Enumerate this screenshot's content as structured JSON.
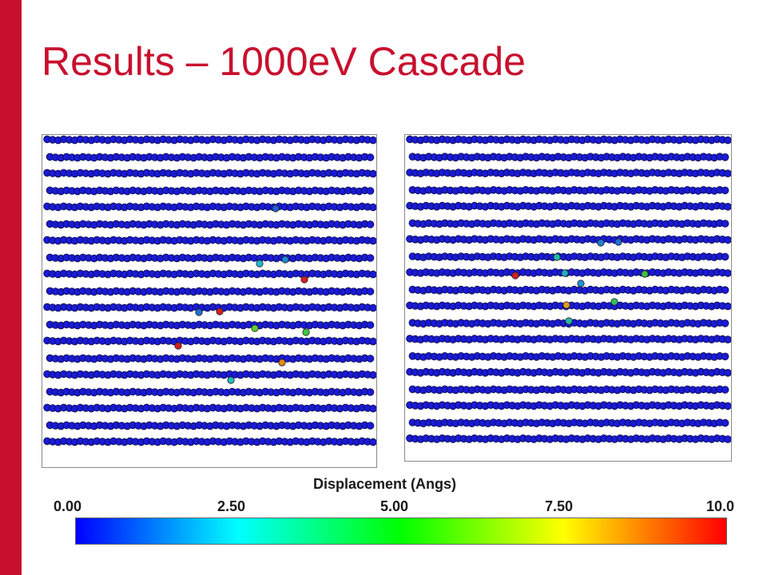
{
  "slide": {
    "title": "Results – 1000eV Cascade",
    "accent_color": "#c8102e",
    "title_color": "#c8102e"
  },
  "panels": [
    {
      "name": "left-lattice",
      "rows": 19,
      "columns": 28,
      "atom_color": "#1a1ad6",
      "displaced_atoms": [
        {
          "value": 9.6,
          "color": "#d42020"
        },
        {
          "value": 9.2,
          "color": "#d42020"
        },
        {
          "value": 9.4,
          "color": "#d42020"
        },
        {
          "value": 7.8,
          "color": "#e08a18"
        },
        {
          "value": 6.2,
          "color": "#60d030"
        },
        {
          "value": 6.0,
          "color": "#40c840"
        },
        {
          "value": 3.4,
          "color": "#20c0c0"
        },
        {
          "value": 3.0,
          "color": "#20b8d0"
        },
        {
          "value": 1.4,
          "color": "#2070d8"
        },
        {
          "value": 1.6,
          "color": "#2088d8"
        },
        {
          "value": 1.2,
          "color": "#2060d8"
        }
      ]
    },
    {
      "name": "right-lattice",
      "rows": 19,
      "columns": 28,
      "atom_color": "#1a1ad6",
      "displaced_atoms": [
        {
          "value": 9.5,
          "color": "#d42020"
        },
        {
          "value": 8.0,
          "color": "#e0a020"
        },
        {
          "value": 3.8,
          "color": "#20c0a0"
        },
        {
          "value": 4.6,
          "color": "#30c060"
        },
        {
          "value": 5.6,
          "color": "#40c040"
        },
        {
          "value": 3.2,
          "color": "#20b0c0"
        },
        {
          "value": 1.8,
          "color": "#2090d8"
        },
        {
          "value": 1.5,
          "color": "#2080d8"
        },
        {
          "value": 3.6,
          "color": "#20c0a0"
        },
        {
          "value": 1.3,
          "color": "#2070d8"
        }
      ]
    }
  ],
  "legend": {
    "title": "Displacement (Angs)",
    "ticks": [
      "0.00",
      "2.50",
      "5.00",
      "7.50",
      "10.0"
    ],
    "range": [
      0,
      10
    ],
    "colormap": [
      "#0000ff",
      "#00ffff",
      "#00ff00",
      "#ffff00",
      "#ff0000"
    ]
  }
}
